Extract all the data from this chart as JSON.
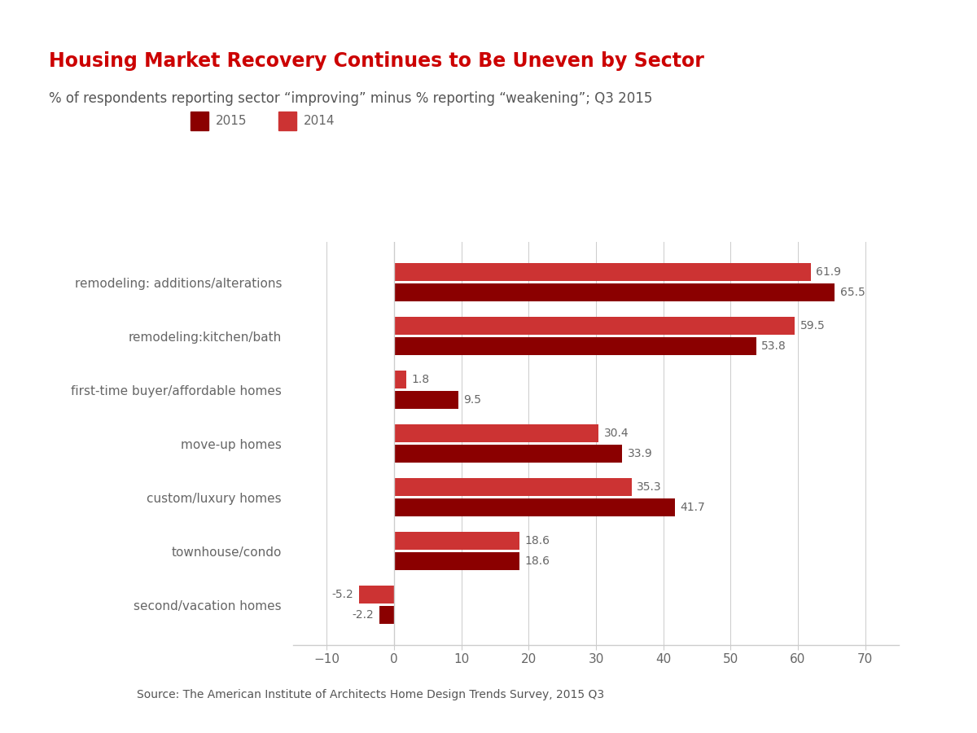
{
  "title": "Housing Market Recovery Continues to Be Uneven by Sector",
  "subtitle": "% of respondents reporting sector “improving” minus % reporting “weakening”; Q3 2015",
  "source": "Source: The American Institute of Architects Home Design Trends Survey, 2015 Q3",
  "categories": [
    "remodeling: additions/alterations",
    "remodeling:kitchen/bath",
    "first-time buyer/affordable homes",
    "move-up homes",
    "custom/luxury homes",
    "townhouse/condo",
    "second/vacation homes"
  ],
  "values_2015": [
    65.5,
    53.8,
    9.5,
    33.9,
    41.7,
    18.6,
    -2.2
  ],
  "values_2014": [
    61.9,
    59.5,
    1.8,
    30.4,
    35.3,
    18.6,
    -5.2
  ],
  "color_2015": "#8B0000",
  "color_2014": "#CC3333",
  "title_color": "#CC0000",
  "subtitle_color": "#555555",
  "source_color": "#555555",
  "legend_2015_color": "#8B0000",
  "legend_2014_color": "#CC3333",
  "xlim": [
    -15,
    75
  ],
  "xticks": [
    -10,
    0,
    10,
    20,
    30,
    40,
    50,
    60,
    70
  ],
  "bar_height": 0.32,
  "background_color": "#FFFFFF",
  "axis_color": "#CCCCCC",
  "tick_label_color": "#666666",
  "label_fontsize": 10,
  "ytick_fontsize": 11,
  "xtick_fontsize": 11
}
